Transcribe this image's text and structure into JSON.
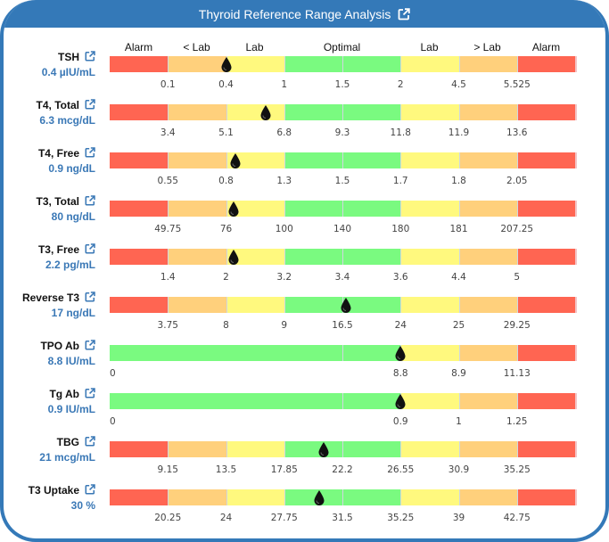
{
  "header": {
    "title": "Thyroid Reference Range Analysis",
    "link_icon": "external-link-icon"
  },
  "colors": {
    "alarm": "#ff6552",
    "outside_lab": "#ffd07c",
    "lab": "#fff97e",
    "optimal": "#7afa80",
    "accent": "#3479b8",
    "value_text": "#3a78b6"
  },
  "zone_labels": [
    "Alarm",
    "< Lab",
    "Lab",
    "Optimal",
    "Lab",
    "> Lab",
    "Alarm"
  ],
  "chart_data": {
    "type": "table",
    "title": "Thyroid Reference Range Analysis",
    "zones": [
      "Alarm",
      "< Lab",
      "Lab",
      "Optimal",
      "Optimal",
      "Lab",
      "> Lab",
      "Alarm"
    ],
    "marker": "drop-icon",
    "rows": [
      {
        "name": "TSH",
        "value": "0.4 µIU/mL",
        "reading": 0.4,
        "ticks": [
          "0.1",
          "0.4",
          "1",
          "1.5",
          "2",
          "4.5",
          "5.525"
        ],
        "zone_colors": [
          "alarm",
          "outside_lab",
          "lab",
          "optimal",
          "optimal",
          "lab",
          "outside_lab",
          "alarm"
        ],
        "marker_position": 0.25
      },
      {
        "name": "T4, Total",
        "value": "6.3 mcg/dL",
        "reading": 6.3,
        "ticks": [
          "3.4",
          "5.1",
          "6.8",
          "9.3",
          "11.8",
          "11.9",
          "13.6"
        ],
        "zone_colors": [
          "alarm",
          "outside_lab",
          "lab",
          "optimal",
          "optimal",
          "lab",
          "outside_lab",
          "alarm"
        ],
        "marker_position": 0.336
      },
      {
        "name": "T4, Free",
        "value": "0.9 ng/dL",
        "reading": 0.9,
        "ticks": [
          "0.55",
          "0.8",
          "1.3",
          "1.5",
          "1.7",
          "1.8",
          "2.05"
        ],
        "zone_colors": [
          "alarm",
          "outside_lab",
          "lab",
          "optimal",
          "optimal",
          "lab",
          "outside_lab",
          "alarm"
        ],
        "marker_position": 0.27
      },
      {
        "name": "T3, Total",
        "value": "80 ng/dL",
        "reading": 80,
        "ticks": [
          "49.75",
          "76",
          "100",
          "140",
          "180",
          "181",
          "207.25"
        ],
        "zone_colors": [
          "alarm",
          "outside_lab",
          "lab",
          "optimal",
          "optimal",
          "lab",
          "outside_lab",
          "alarm"
        ],
        "marker_position": 0.266
      },
      {
        "name": "T3, Free",
        "value": "2.2 pg/mL",
        "reading": 2.2,
        "ticks": [
          "1.4",
          "2",
          "3.2",
          "3.4",
          "3.6",
          "4.4",
          "5"
        ],
        "zone_colors": [
          "alarm",
          "outside_lab",
          "lab",
          "optimal",
          "optimal",
          "lab",
          "outside_lab",
          "alarm"
        ],
        "marker_position": 0.266
      },
      {
        "name": "Reverse T3",
        "value": "17 ng/dL",
        "reading": 17,
        "ticks": [
          "3.75",
          "8",
          "9",
          "16.5",
          "24",
          "25",
          "29.25"
        ],
        "zone_colors": [
          "alarm",
          "outside_lab",
          "lab",
          "optimal",
          "optimal",
          "lab",
          "outside_lab",
          "alarm"
        ],
        "marker_position": 0.508
      },
      {
        "name": "TPO Ab",
        "value": "8.8 IU/mL",
        "reading": 8.8,
        "ticks": [
          "0",
          "8.8",
          "8.9",
          "11.13"
        ],
        "zone_colors": [
          "optimal",
          "optimal",
          "optimal",
          "optimal",
          "optimal",
          "lab",
          "outside_lab",
          "alarm"
        ],
        "marker_position": 0.625
      },
      {
        "name": "Tg Ab",
        "value": "0.9 IU/mL",
        "reading": 0.9,
        "ticks": [
          "0",
          "0.9",
          "1",
          "1.25"
        ],
        "zone_colors": [
          "optimal",
          "optimal",
          "optimal",
          "optimal",
          "optimal",
          "lab",
          "outside_lab",
          "alarm"
        ],
        "marker_position": 0.625
      },
      {
        "name": "TBG",
        "value": "21 mcg/mL",
        "reading": 21,
        "ticks": [
          "9.15",
          "13.5",
          "17.85",
          "22.2",
          "26.55",
          "30.9",
          "35.25"
        ],
        "zone_colors": [
          "alarm",
          "outside_lab",
          "lab",
          "optimal",
          "optimal",
          "lab",
          "outside_lab",
          "alarm"
        ],
        "marker_position": 0.46
      },
      {
        "name": "T3 Uptake",
        "value": "30 %",
        "reading": 30,
        "ticks": [
          "20.25",
          "24",
          "27.75",
          "31.5",
          "35.25",
          "39",
          "42.75"
        ],
        "zone_colors": [
          "alarm",
          "outside_lab",
          "lab",
          "optimal",
          "optimal",
          "lab",
          "outside_lab",
          "alarm"
        ],
        "marker_position": 0.45
      }
    ]
  }
}
